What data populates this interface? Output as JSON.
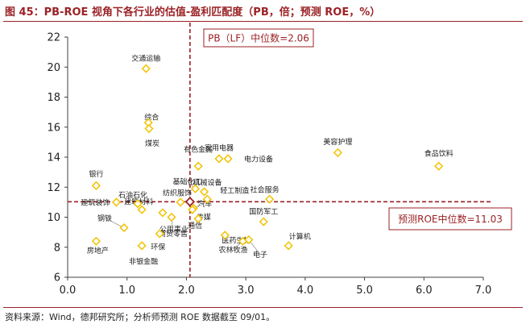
{
  "header": {
    "title": "图 45：PB-ROE 视角下各行业的估值-盈利匹配度（PB，倍；预测 ROE，%）"
  },
  "footer": {
    "source": "资料来源：Wind，德邦研究所；分析师预测 ROE 数据截至 09/01。"
  },
  "colors": {
    "accent": "#9b2226",
    "marker": "#f2c200",
    "axis": "#404040",
    "text": "#222222"
  },
  "chart_data": {
    "type": "scatter",
    "title": "PB-ROE 视角下各行业的估值-盈利匹配度（PB，倍；预测 ROE，%）",
    "xlabel": "",
    "ylabel": "",
    "xlim": [
      0,
      7
    ],
    "ylim": [
      6,
      22
    ],
    "xticks": [
      0,
      1,
      2,
      3,
      4,
      5,
      6,
      7
    ],
    "yticks": [
      6,
      8,
      10,
      12,
      14,
      16,
      18,
      20,
      22
    ],
    "xtick_labels": [
      "0.0",
      "1.0",
      "2.0",
      "3.0",
      "4.0",
      "5.0",
      "6.0",
      "7.0"
    ],
    "ytick_labels": [
      "6",
      "8",
      "10",
      "12",
      "14",
      "16",
      "18",
      "20",
      "22"
    ],
    "grid": false,
    "median_lines": {
      "pb_median": 2.06,
      "roe_median": 11.03,
      "pb_label": "PB（LF）中位数=2.06",
      "roe_label": "预测ROE中位数=11.03"
    },
    "points": [
      {
        "name": "交通运输",
        "x": 1.32,
        "y": 19.9
      },
      {
        "name": "综合",
        "x": 1.36,
        "y": 16.3
      },
      {
        "name": "煤炭",
        "x": 1.37,
        "y": 15.9
      },
      {
        "name": "家用电器",
        "x": 2.55,
        "y": 13.9
      },
      {
        "name": "有色金属",
        "x": 2.2,
        "y": 13.4
      },
      {
        "name": "电力设备",
        "x": 2.7,
        "y": 13.9
      },
      {
        "name": "美容护理",
        "x": 4.55,
        "y": 14.3
      },
      {
        "name": "食品饮料",
        "x": 6.25,
        "y": 13.4
      },
      {
        "name": "银行",
        "x": 0.48,
        "y": 12.1
      },
      {
        "name": "基础化工",
        "x": 2.15,
        "y": 11.9
      },
      {
        "name": "机械设备",
        "x": 2.3,
        "y": 11.7
      },
      {
        "name": "轻工制造",
        "x": 2.35,
        "y": 11.2
      },
      {
        "name": "社会服务",
        "x": 3.4,
        "y": 11.2
      },
      {
        "name": "石油石化",
        "x": 1.18,
        "y": 10.9
      },
      {
        "name": "建筑装饰",
        "x": 0.82,
        "y": 11.0
      },
      {
        "name": "纺织服饰",
        "x": 1.9,
        "y": 11.0
      },
      {
        "name": "汽车",
        "x": 2.12,
        "y": 10.6
      },
      {
        "name": "建筑材料",
        "x": 1.25,
        "y": 10.5
      },
      {
        "name": "传媒",
        "x": 2.1,
        "y": 10.5
      },
      {
        "name": "国防军工",
        "x": 3.3,
        "y": 9.7
      },
      {
        "name": "通信",
        "x": 2.2,
        "y": 9.9
      },
      {
        "name": "公用事业",
        "x": 1.6,
        "y": 10.3
      },
      {
        "name": "商贸零售",
        "x": 1.75,
        "y": 10.0
      },
      {
        "name": "钢铁",
        "x": 0.95,
        "y": 9.3
      },
      {
        "name": "环保",
        "x": 1.55,
        "y": 8.9
      },
      {
        "name": "医药生物",
        "x": 2.65,
        "y": 8.8
      },
      {
        "name": "农林牧渔",
        "x": 2.95,
        "y": 8.4
      },
      {
        "name": "计算机",
        "x": 3.72,
        "y": 8.1
      },
      {
        "name": "电子",
        "x": 3.05,
        "y": 8.5
      },
      {
        "name": "房地产",
        "x": 0.48,
        "y": 8.4
      },
      {
        "name": "非银金融",
        "x": 1.25,
        "y": 8.1
      }
    ]
  }
}
